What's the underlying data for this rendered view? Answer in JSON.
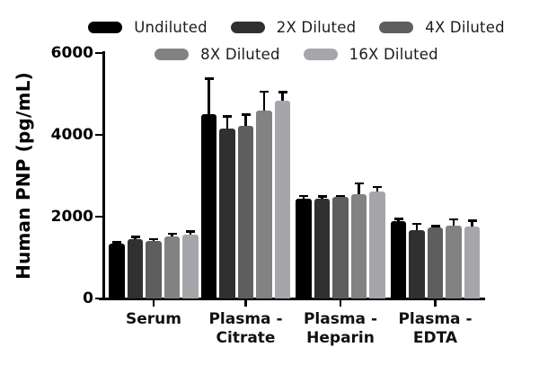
{
  "chart_data": {
    "type": "bar",
    "title": "",
    "ylabel": "Human PNP (pg/mL)",
    "xlabel": "",
    "ylim": [
      0,
      6000
    ],
    "yticks": [
      0,
      2000,
      4000,
      6000
    ],
    "grid": false,
    "legend_position": "top",
    "legend_rows": [
      [
        "Undiluted",
        "2X Diluted",
        "4X Diluted"
      ],
      [
        "8X Diluted",
        "16X Diluted"
      ]
    ],
    "categories": [
      "Serum",
      "Plasma -\nCitrate",
      "Plasma -\nHeparin",
      "Plasma -\nEDTA"
    ],
    "series": [
      {
        "name": "Undiluted",
        "color": "#000000",
        "values": [
          1340,
          4500,
          2440,
          1890
        ],
        "errors_up": [
          30,
          870,
          70,
          50
        ]
      },
      {
        "name": "2X Diluted",
        "color": "#303030",
        "values": [
          1460,
          4160,
          2450,
          1670
        ],
        "errors_up": [
          50,
          290,
          40,
          150
        ]
      },
      {
        "name": "4X Diluted",
        "color": "#5e5e5e",
        "values": [
          1410,
          4210,
          2480,
          1730
        ],
        "errors_up": [
          40,
          290,
          30,
          40
        ]
      },
      {
        "name": "8X Diluted",
        "color": "#828282",
        "values": [
          1520,
          4600,
          2560,
          1780
        ],
        "errors_up": [
          60,
          455,
          250,
          150
        ]
      },
      {
        "name": "16X Diluted",
        "color": "#a6a6aa",
        "values": [
          1570,
          4840,
          2620,
          1760
        ],
        "errors_up": [
          70,
          200,
          110,
          145
        ]
      }
    ],
    "error_bar_color": "#000000",
    "axis_color": "#000000"
  }
}
